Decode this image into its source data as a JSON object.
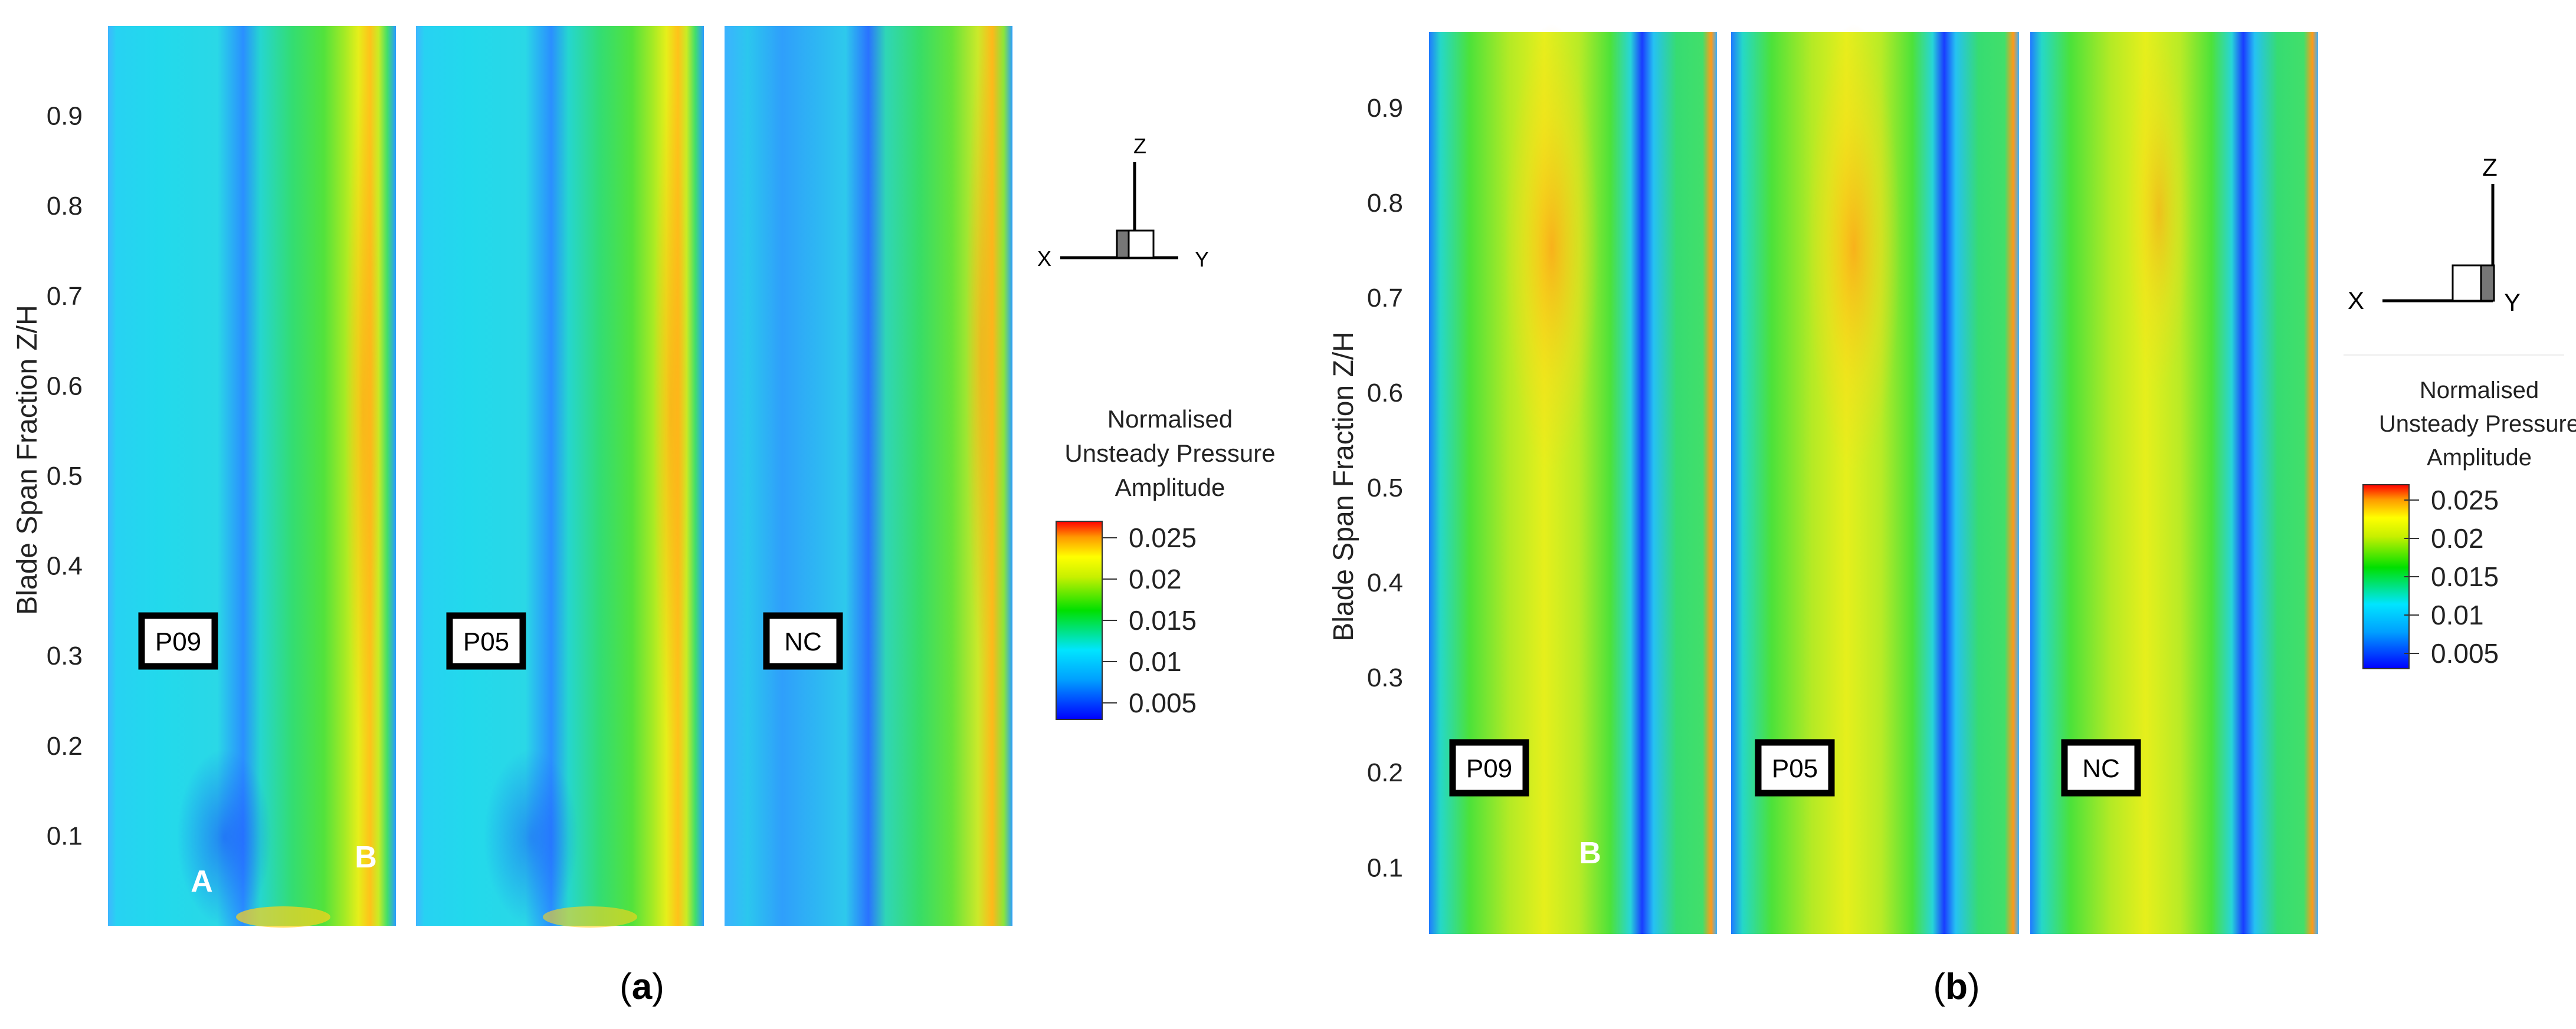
{
  "figure": {
    "panels": [
      {
        "id": "a",
        "caption_letter": "a",
        "ylabel": "Blade Span Fraction Z/H",
        "ytick_labels": [
          "0.1",
          "0.2",
          "0.3",
          "0.4",
          "0.5",
          "0.6",
          "0.7",
          "0.8",
          "0.9"
        ],
        "ytick_values": [
          0.1,
          0.2,
          0.3,
          0.4,
          0.5,
          0.6,
          0.7,
          0.8,
          0.9
        ],
        "ylim": [
          0.0,
          1.0
        ],
        "maps": [
          {
            "case": "P09",
            "annotations": [
              "A",
              "B"
            ]
          },
          {
            "case": "P05",
            "annotations": []
          },
          {
            "case": "NC",
            "annotations": []
          }
        ],
        "axes_triad": {
          "up": "Z",
          "left": "X",
          "right": "Y"
        },
        "legend": {
          "title_lines": [
            "Normalised",
            "Unsteady Pressure",
            "Amplitude"
          ],
          "tick_labels": [
            "0.025",
            "0.02",
            "0.015",
            "0.01",
            "0.005"
          ],
          "tick_values": [
            0.025,
            0.02,
            0.015,
            0.01,
            0.005
          ]
        }
      },
      {
        "id": "b",
        "caption_letter": "b",
        "ylabel": "Blade Span Fraction Z/H",
        "ytick_labels": [
          "0.1",
          "0.2",
          "0.3",
          "0.4",
          "0.5",
          "0.6",
          "0.7",
          "0.8",
          "0.9"
        ],
        "ytick_values": [
          0.1,
          0.2,
          0.3,
          0.4,
          0.5,
          0.6,
          0.7,
          0.8,
          0.9
        ],
        "ylim": [
          0.03,
          0.98
        ],
        "maps": [
          {
            "case": "P09",
            "annotations": [
              "B"
            ]
          },
          {
            "case": "P05",
            "annotations": []
          },
          {
            "case": "NC",
            "annotations": []
          }
        ],
        "axes_triad": {
          "up": "Z",
          "left": "X",
          "right": "Y"
        },
        "legend": {
          "title_lines": [
            "Normalised",
            "Unsteady Pressure",
            "Amplitude"
          ],
          "tick_labels": [
            "0.025",
            "0.02",
            "0.015",
            "0.01",
            "0.005"
          ],
          "tick_values": [
            0.025,
            0.02,
            0.015,
            0.01,
            0.005
          ]
        }
      }
    ]
  },
  "chart_data": [
    {
      "type": "heatmap",
      "panel": "a",
      "ylabel": "Blade Span Fraction Z/H",
      "ylim": [
        0.0,
        1.0
      ],
      "series": [
        {
          "name": "P09"
        },
        {
          "name": "P05"
        },
        {
          "name": "NC"
        }
      ],
      "colorbar": {
        "title": "Normalised Unsteady Pressure Amplitude",
        "min": 0.003,
        "max": 0.027,
        "ticks": [
          0.005,
          0.01,
          0.015,
          0.02,
          0.025
        ],
        "colormap": [
          "#0000ff",
          "#00e5ff",
          "#00e000",
          "#ffff00",
          "#ff9900",
          "#ff0000"
        ]
      },
      "annotations": [
        "A",
        "B"
      ]
    },
    {
      "type": "heatmap",
      "panel": "b",
      "ylabel": "Blade Span Fraction Z/H",
      "ylim": [
        0.03,
        0.98
      ],
      "series": [
        {
          "name": "P09"
        },
        {
          "name": "P05"
        },
        {
          "name": "NC"
        }
      ],
      "colorbar": {
        "title": "Normalised Unsteady Pressure Amplitude",
        "min": 0.003,
        "max": 0.027,
        "ticks": [
          0.005,
          0.01,
          0.015,
          0.02,
          0.025
        ],
        "colormap": [
          "#0000ff",
          "#00e5ff",
          "#00e000",
          "#ffff00",
          "#ff9900",
          "#ff0000"
        ]
      },
      "annotations": [
        "B"
      ]
    }
  ]
}
